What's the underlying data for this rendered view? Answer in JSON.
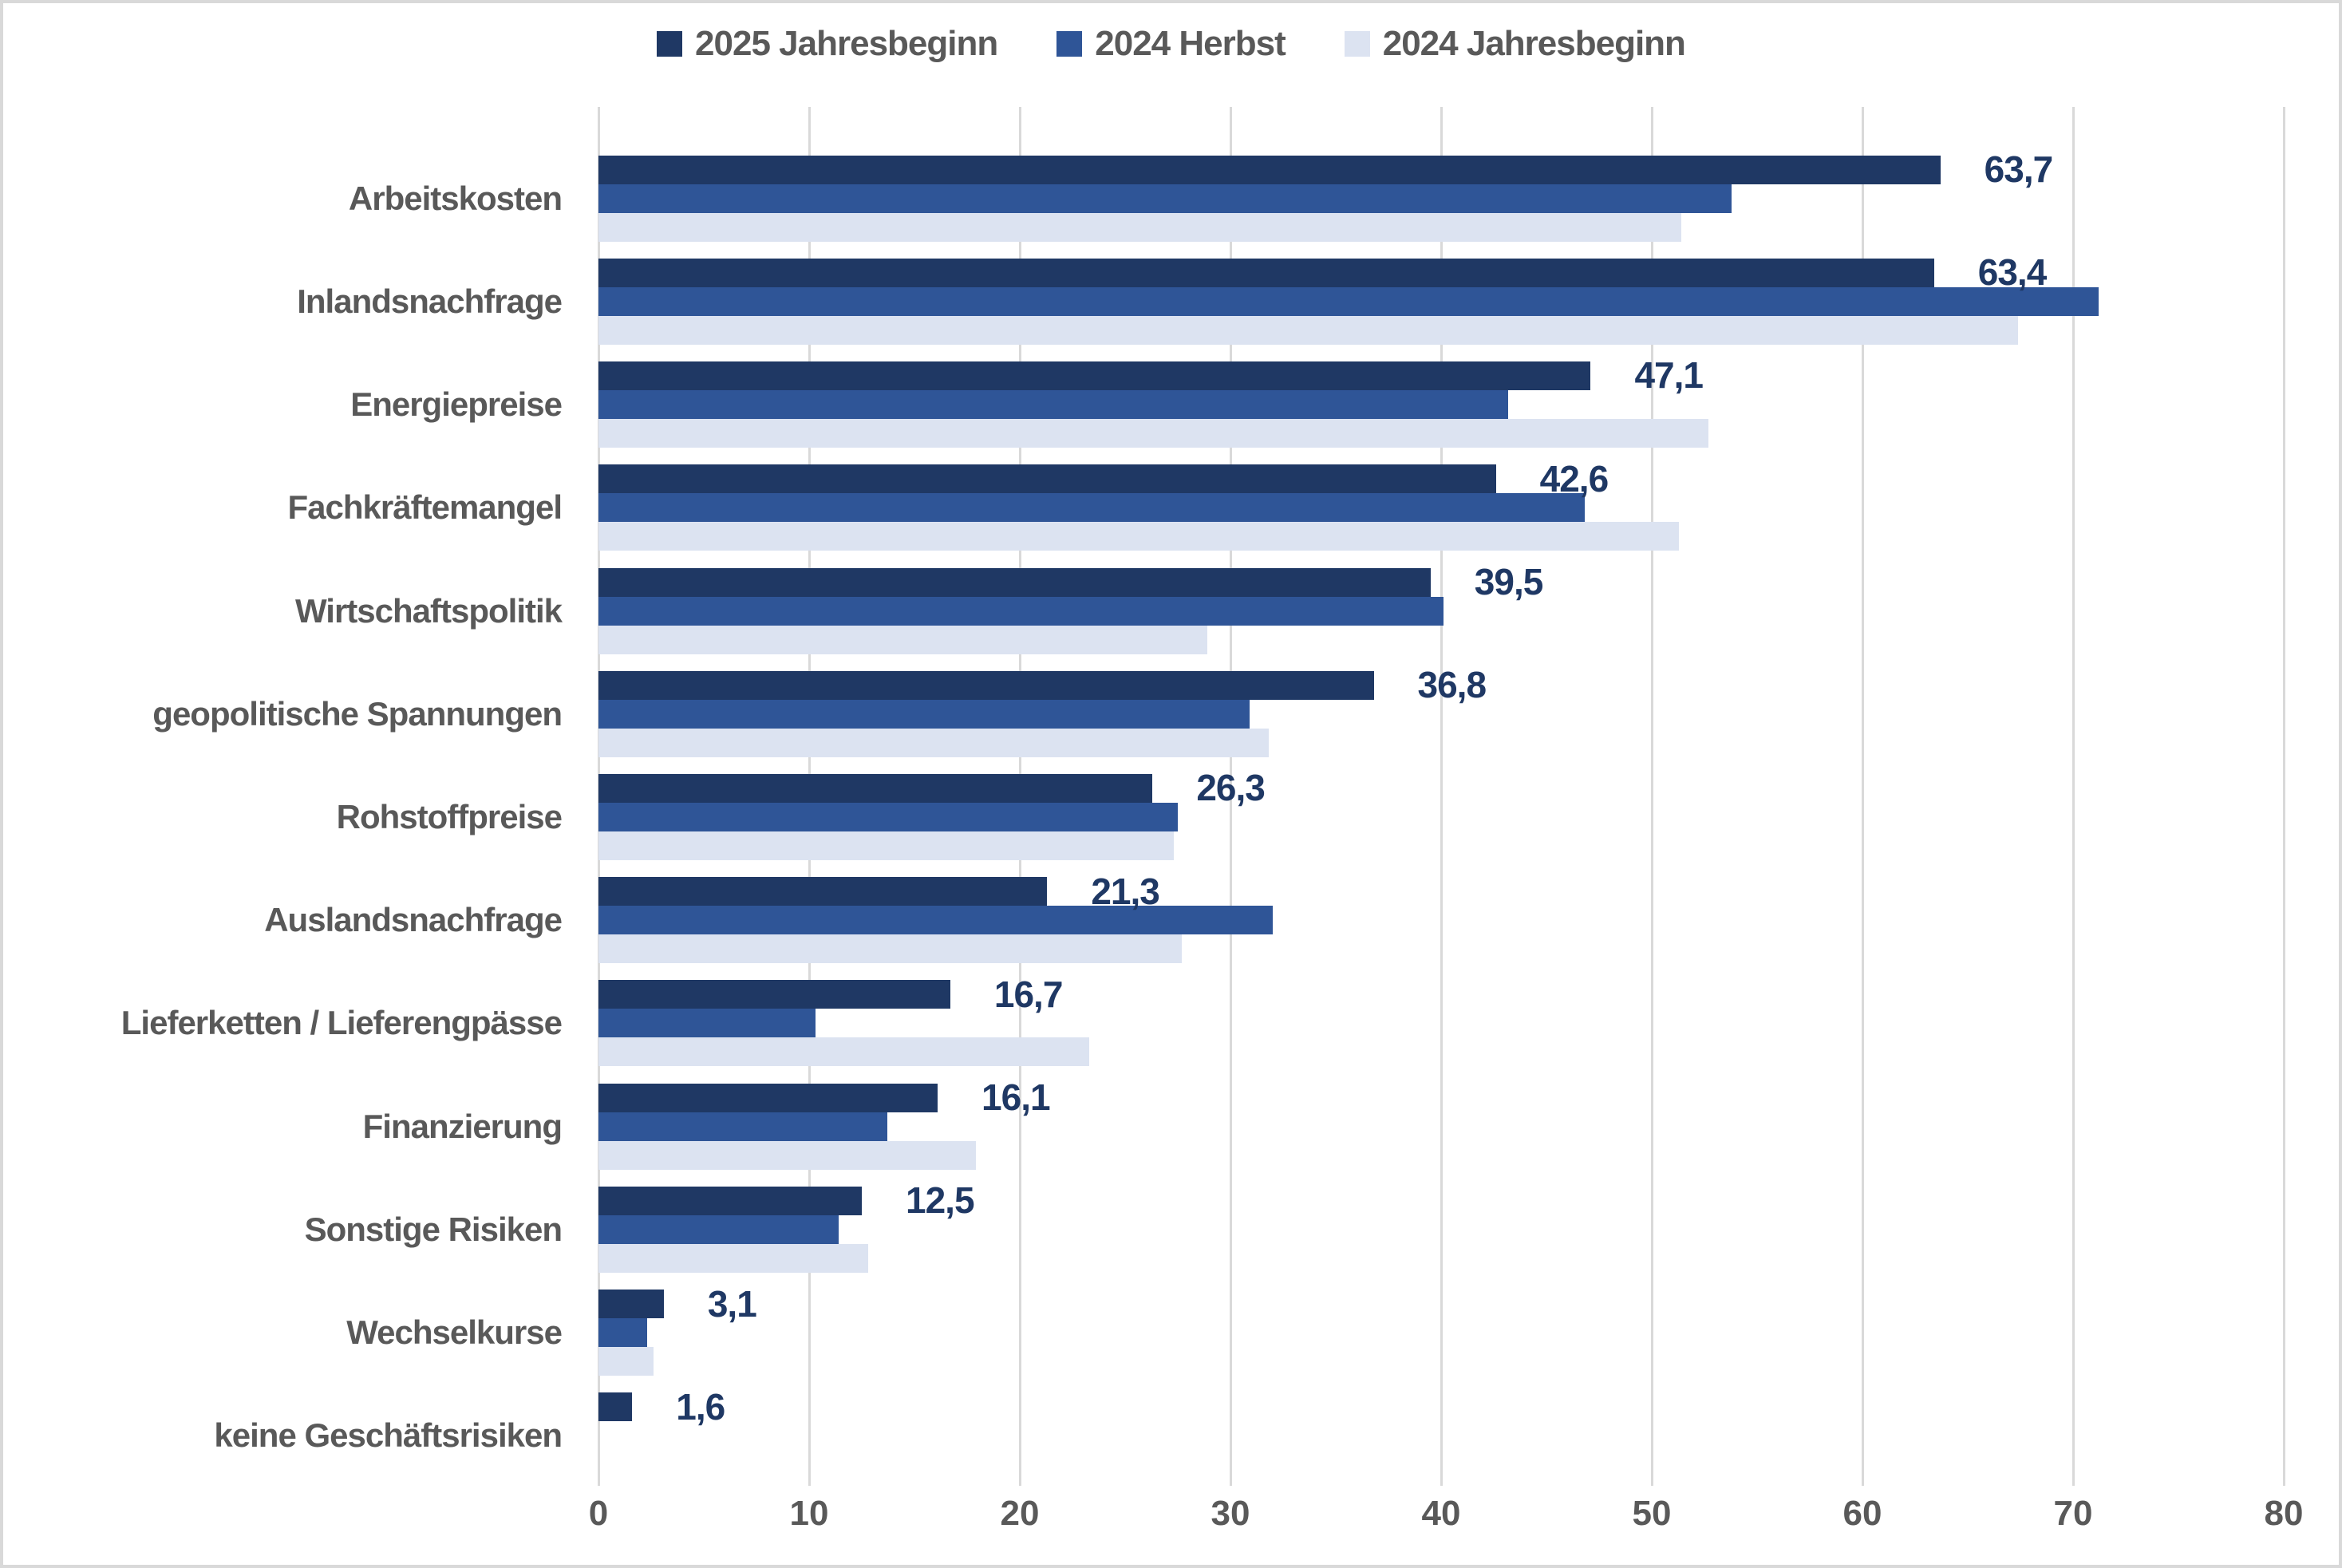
{
  "legend": [
    {
      "label": "2025 Jahresbeginn",
      "color": "#1f3864"
    },
    {
      "label": "2024 Herbst",
      "color": "#2f5597"
    },
    {
      "label": "2024 Jahresbeginn",
      "color": "#dce3f1"
    }
  ],
  "colors": {
    "series_dark": "#1f3864",
    "series_medium": "#2f5597",
    "series_light": "#dce3f1",
    "text_gray": "#595959",
    "value_label": "#1f3864",
    "gridline": "#d9d9d9",
    "frame_border": "#d9d9d9",
    "background": "#ffffff"
  },
  "chart_data": {
    "type": "bar",
    "orientation": "horizontal",
    "title": "",
    "xlabel": "",
    "ylabel": "",
    "xlim": [
      0,
      80
    ],
    "x_ticks": [
      0,
      10,
      20,
      30,
      40,
      50,
      60,
      70,
      80
    ],
    "grid": "vertical",
    "legend_position": "top",
    "categories": [
      "Arbeitskosten",
      "Inlandsnachfrage",
      "Energiepreise",
      "Fachkräftemangel",
      "Wirtschaftspolitik",
      "geopolitische Spannungen",
      "Rohstoffpreise",
      "Auslandsnachfrage",
      "Lieferketten / Lieferengpässe",
      "Finanzierung",
      "Sonstige Risiken",
      "Wechselkurse",
      "keine Geschäftsrisiken"
    ],
    "series": [
      {
        "name": "2025 Jahresbeginn",
        "color": "#1f3864",
        "values": [
          63.7,
          63.4,
          47.1,
          42.6,
          39.5,
          36.8,
          26.3,
          21.3,
          16.7,
          16.1,
          12.5,
          3.1,
          1.6
        ]
      },
      {
        "name": "2024 Herbst",
        "color": "#2f5597",
        "values": [
          53.8,
          71.2,
          43.2,
          46.8,
          40.1,
          30.9,
          27.5,
          32.0,
          10.3,
          13.7,
          11.4,
          2.3,
          null
        ]
      },
      {
        "name": "2024 Jahresbeginn",
        "color": "#dce3f1",
        "values": [
          51.4,
          67.4,
          52.7,
          51.3,
          28.9,
          31.8,
          27.3,
          27.7,
          23.3,
          17.9,
          12.8,
          2.6,
          null
        ]
      }
    ],
    "data_labels": {
      "series": "2025 Jahresbeginn",
      "values": [
        "63,7",
        "63,4",
        "47,1",
        "42,6",
        "39,5",
        "36,8",
        "26,3",
        "21,3",
        "16,7",
        "16,1",
        "12,5",
        "3,1",
        "1,6"
      ]
    }
  }
}
